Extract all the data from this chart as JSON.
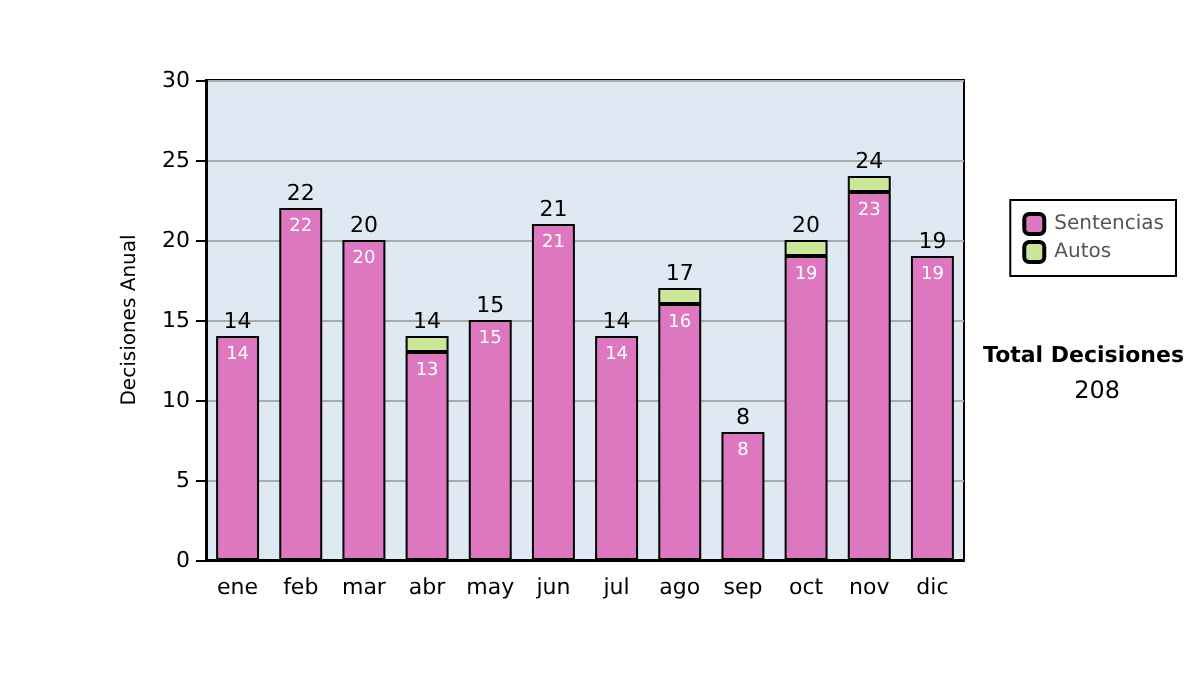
{
  "chart_data": {
    "type": "bar",
    "stacked": true,
    "ylabel": "Decisiones Anual",
    "categories": [
      "ene",
      "feb",
      "mar",
      "abr",
      "may",
      "jun",
      "jul",
      "ago",
      "sep",
      "oct",
      "nov",
      "dic"
    ],
    "series": [
      {
        "name": "Sentencias",
        "color": "#dd77c0",
        "values": [
          14,
          22,
          20,
          13,
          15,
          21,
          14,
          16,
          8,
          19,
          23,
          19
        ],
        "value_labels": [
          "14",
          "22",
          "20",
          "13",
          "15",
          "21",
          "14",
          "16",
          "8",
          "19",
          "23",
          "19"
        ]
      },
      {
        "name": "Autos",
        "color": "#cce699",
        "values": [
          0,
          0,
          0,
          1,
          0,
          0,
          0,
          1,
          0,
          1,
          1,
          0
        ]
      }
    ],
    "totals": [
      "14",
      "22",
      "20",
      "14",
      "15",
      "21",
      "14",
      "17",
      "8",
      "20",
      "24",
      "19"
    ],
    "ylim": [
      0,
      30
    ],
    "yticks": [
      0,
      5,
      10,
      15,
      20,
      25,
      30
    ],
    "grid": "y",
    "legend": "right",
    "annotations": [
      "Total Decisiones",
      "208"
    ]
  }
}
